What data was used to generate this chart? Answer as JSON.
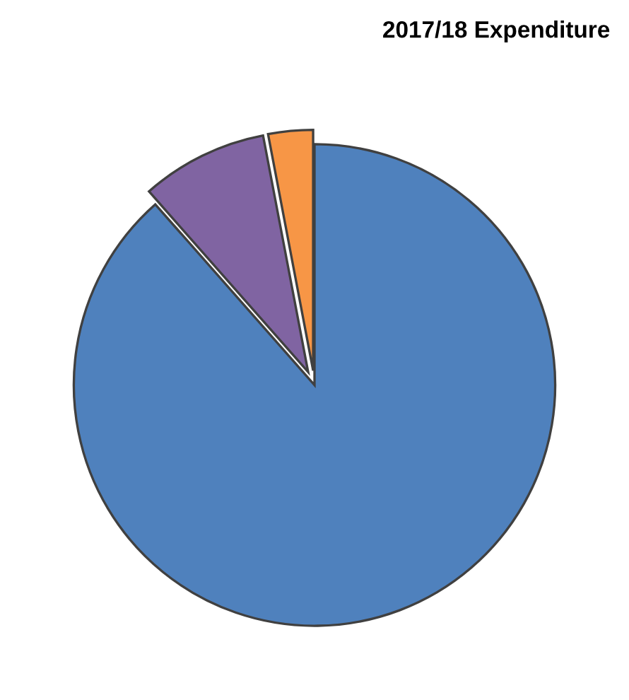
{
  "chart_data": {
    "type": "pie",
    "title": "2017/18 Expenditure",
    "categories": [
      null,
      null,
      null
    ],
    "values": [
      88.5,
      8.5,
      3
    ],
    "colors": [
      "#4f81bd",
      "#8064a2",
      "#f79646"
    ]
  }
}
